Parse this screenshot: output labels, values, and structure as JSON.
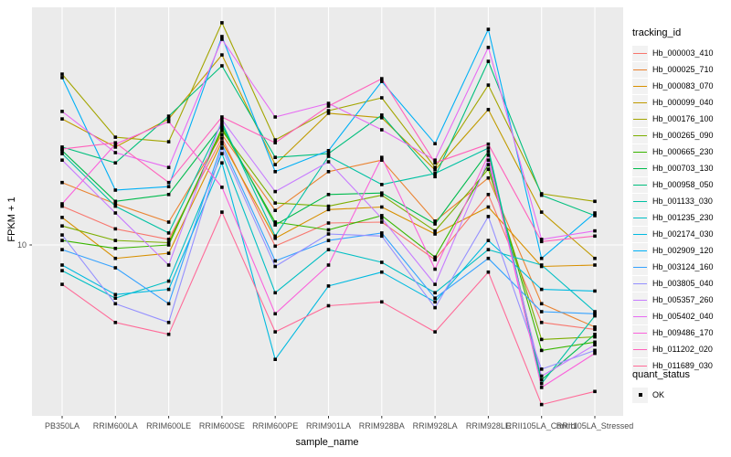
{
  "chart_data": {
    "type": "line",
    "title": "",
    "xlabel": "sample_name",
    "ylabel": "FPKM + 1",
    "y_scale": "log10",
    "y_ticks": [
      {
        "value": 10,
        "label": "10"
      }
    ],
    "grid": "major-on",
    "panel_bg": "#EBEBEB",
    "gridline_color": "#FFFFFF",
    "point_shape": "filled-square-black",
    "categories": [
      "PB350LA",
      "RRIM600LA",
      "RRIM600LE",
      "RRIM600SE",
      "RRIM600PE",
      "RRIM901LA",
      "RRIM928BA",
      "RRIM928LA",
      "RRIM928LE",
      "RRII105LA_Control",
      "RRII105LA_Stressed"
    ],
    "legend": {
      "title": "tracking_id",
      "position": "right"
    },
    "quant_legend": {
      "title": "quant_status",
      "items": [
        "OK"
      ]
    },
    "series": [
      {
        "name": "Hb_000003_410",
        "color": "#F8766D",
        "values": [
          14.0,
          11.5,
          10.5,
          25.3,
          9.9,
          12.1,
          12.2,
          8.8,
          15.5,
          5.1,
          4.8
        ]
      },
      {
        "name": "Hb_000025_710",
        "color": "#EA8331",
        "values": [
          17.2,
          14.3,
          12.2,
          26.1,
          13.5,
          18.9,
          20.9,
          12.3,
          17.9,
          6.0,
          4.9
        ]
      },
      {
        "name": "Hb_000083_070",
        "color": "#D89000",
        "values": [
          12.7,
          8.9,
          9.3,
          24.5,
          10.6,
          13.6,
          13.9,
          11.0,
          13.9,
          8.3,
          8.4
        ]
      },
      {
        "name": "Hb_000099_040",
        "color": "#C09B00",
        "values": [
          29.9,
          23.4,
          29.9,
          52.1,
          20.1,
          31.4,
          30.2,
          19.2,
          32.4,
          13.3,
          8.9
        ]
      },
      {
        "name": "Hb_000176_100",
        "color": "#A3A500",
        "values": [
          44.1,
          25.5,
          24.5,
          68.9,
          24.9,
          32.1,
          35.9,
          19.6,
          40.1,
          15.6,
          14.6
        ]
      },
      {
        "name": "Hb_000265_090",
        "color": "#7CAE00",
        "values": [
          11.8,
          10.4,
          10.2,
          27.0,
          14.4,
          14.0,
          15.4,
          11.3,
          19.3,
          4.4,
          4.5
        ]
      },
      {
        "name": "Hb_000665_230",
        "color": "#39B600",
        "values": [
          10.4,
          9.7,
          10.0,
          27.6,
          12.2,
          11.4,
          12.9,
          9.0,
          20.1,
          4.0,
          4.3
        ]
      },
      {
        "name": "Hb_000703_130",
        "color": "#00BB4E",
        "values": [
          22.7,
          14.6,
          15.5,
          28.3,
          11.9,
          15.5,
          15.7,
          12.0,
          22.5,
          3.1,
          4.6
        ]
      },
      {
        "name": "Hb_000958_050",
        "color": "#00BF7D",
        "values": [
          23.4,
          20.4,
          30.6,
          47.4,
          21.4,
          22.1,
          30.9,
          18.1,
          49.3,
          15.4,
          12.9
        ]
      },
      {
        "name": "Hb_001133_030",
        "color": "#00C1A3",
        "values": [
          22.1,
          14.0,
          11.1,
          29.0,
          10.8,
          21.6,
          16.9,
          18.6,
          23.2,
          3.0,
          5.4
        ]
      },
      {
        "name": "Hb_001235_230",
        "color": "#00BFC4",
        "values": [
          8.0,
          6.3,
          7.3,
          22.1,
          6.6,
          9.6,
          8.6,
          6.6,
          9.6,
          8.4,
          5.6
        ]
      },
      {
        "name": "Hb_002174_030",
        "color": "#00BAE0",
        "values": [
          8.4,
          6.5,
          6.8,
          20.4,
          3.7,
          7.0,
          7.9,
          6.1,
          10.4,
          6.8,
          6.7
        ]
      },
      {
        "name": "Hb_002909_120",
        "color": "#00B0F6",
        "values": [
          42.8,
          16.1,
          16.6,
          61.1,
          18.9,
          22.7,
          41.4,
          24.1,
          65.1,
          8.9,
          13.2
        ]
      },
      {
        "name": "Hb_003124_160",
        "color": "#35A2FF",
        "values": [
          9.6,
          8.2,
          6.0,
          24.0,
          8.7,
          10.4,
          11.1,
          6.3,
          8.9,
          5.6,
          5.5
        ]
      },
      {
        "name": "Hb_003805_040",
        "color": "#9590FF",
        "values": [
          10.9,
          6.0,
          5.1,
          23.2,
          8.3,
          11.0,
          10.8,
          5.8,
          12.8,
          3.4,
          4.0
        ]
      },
      {
        "name": "Hb_005357_260",
        "color": "#C77CFF",
        "values": [
          20.9,
          13.2,
          8.4,
          29.7,
          15.9,
          20.6,
          12.6,
          7.1,
          20.9,
          3.2,
          4.2
        ]
      },
      {
        "name": "Hb_005402_040",
        "color": "#E76BF3",
        "values": [
          31.9,
          22.3,
          19.6,
          59.7,
          30.4,
          34.2,
          27.2,
          20.9,
          55.6,
          10.5,
          11.3
        ]
      },
      {
        "name": "Hb_009486_170",
        "color": "#FA62DB",
        "values": [
          14.3,
          24.0,
          29.2,
          16.5,
          5.5,
          8.4,
          21.4,
          8.1,
          21.8,
          2.9,
          3.9
        ]
      },
      {
        "name": "Hb_011202_020",
        "color": "#FF62BC",
        "values": [
          23.0,
          24.3,
          17.2,
          30.4,
          24.3,
          33.4,
          42.4,
          20.4,
          24.0,
          10.3,
          10.8
        ]
      },
      {
        "name": "Hb_011689_030",
        "color": "#FF6A98",
        "values": [
          7.1,
          5.1,
          4.6,
          13.3,
          4.7,
          5.9,
          6.1,
          4.7,
          7.9,
          2.5,
          2.8
        ]
      }
    ]
  }
}
